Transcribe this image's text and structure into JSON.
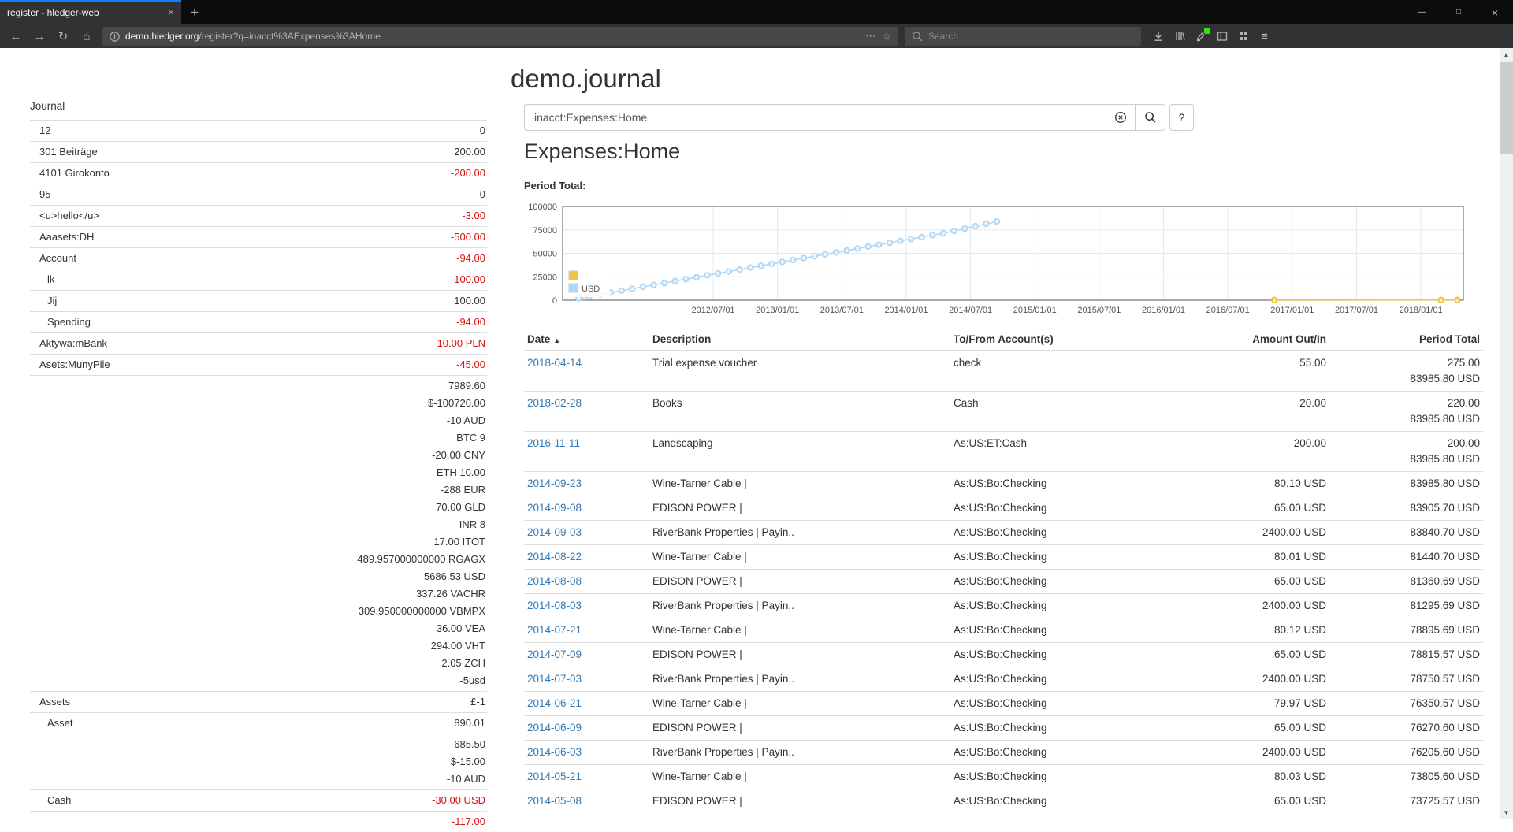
{
  "colors": {
    "negative": "#dd1111",
    "link": "#337ab7",
    "accent": "#0a84ff"
  },
  "icons": {
    "back": "←",
    "forward": "→",
    "reload": "↻",
    "home": "⌂",
    "close_tab": "×",
    "new_tab": "+",
    "minimize": "—",
    "maximize": "□",
    "close_window": "×",
    "page_actions": "⋯",
    "bookmark_star": "☆",
    "menu": "≡",
    "scroll_up": "▲",
    "scroll_down": "▼"
  },
  "browser": {
    "tab_title": "register - hledger-web",
    "url_host": "demo.hledger.org",
    "url_path": "/register?q=inacct%3AExpenses%3AHome",
    "search_placeholder": "Search"
  },
  "page": {
    "title": "demo.journal",
    "query": "inacct:Expenses:Home",
    "heading": "Expenses:Home",
    "chart_label": "Period Total:",
    "help_label": "?"
  },
  "sidebar": {
    "title": "Journal",
    "items": [
      {
        "indent": 1,
        "name": "12",
        "amounts": [
          {
            "text": "0",
            "neg": false
          }
        ]
      },
      {
        "indent": 1,
        "name": "301 Beiträge",
        "amounts": [
          {
            "text": "200.00",
            "neg": false
          }
        ]
      },
      {
        "indent": 1,
        "name": "4101 Girokonto",
        "amounts": [
          {
            "text": "-200.00",
            "neg": true
          }
        ]
      },
      {
        "indent": 1,
        "name": "95",
        "amounts": [
          {
            "text": "0",
            "neg": false
          }
        ]
      },
      {
        "indent": 1,
        "name": "<u>hello</u>",
        "amounts": [
          {
            "text": "-3.00",
            "neg": true
          }
        ]
      },
      {
        "indent": 1,
        "name": "Aaasets:DH",
        "amounts": [
          {
            "text": "-500.00",
            "neg": true
          }
        ]
      },
      {
        "indent": 1,
        "name": "Account",
        "amounts": [
          {
            "text": "-94.00",
            "neg": true
          }
        ]
      },
      {
        "indent": 2,
        "name": "lk",
        "amounts": [
          {
            "text": "-100.00",
            "neg": true
          }
        ]
      },
      {
        "indent": 2,
        "name": "Jij",
        "amounts": [
          {
            "text": "100.00",
            "neg": false
          }
        ]
      },
      {
        "indent": 2,
        "name": "Spending",
        "amounts": [
          {
            "text": "-94.00",
            "neg": true
          }
        ]
      },
      {
        "indent": 1,
        "name": "Aktywa:mBank",
        "amounts": [
          {
            "text": "-10.00 PLN",
            "neg": true
          }
        ]
      },
      {
        "indent": 1,
        "name": "Asets:MunyPile",
        "amounts": [
          {
            "text": "-45.00",
            "neg": true
          }
        ]
      },
      {
        "indent": 1,
        "name": "",
        "amounts": [
          {
            "text": "7989.60",
            "neg": false
          },
          {
            "text": "$-100720.00",
            "neg": false
          },
          {
            "text": "-10 AUD",
            "neg": false
          },
          {
            "text": "BTC 9",
            "neg": false
          },
          {
            "text": "-20.00 CNY",
            "neg": false
          },
          {
            "text": "ETH 10.00",
            "neg": false
          },
          {
            "text": "-288 EUR",
            "neg": false
          },
          {
            "text": "70.00 GLD",
            "neg": false
          },
          {
            "text": "INR 8",
            "neg": false
          },
          {
            "text": "17.00 ITOT",
            "neg": false
          },
          {
            "text": "489.957000000000 RGAGX",
            "neg": false
          },
          {
            "text": "5686.53 USD",
            "neg": false
          },
          {
            "text": "337.26 VACHR",
            "neg": false
          },
          {
            "text": "309.950000000000 VBMPX",
            "neg": false
          },
          {
            "text": "36.00 VEA",
            "neg": false
          },
          {
            "text": "294.00 VHT",
            "neg": false
          },
          {
            "text": "2.05 ZCH",
            "neg": false
          },
          {
            "text": "-5usd",
            "neg": false
          }
        ]
      },
      {
        "indent": 1,
        "name": "Assets",
        "amounts": [
          {
            "text": "£-1",
            "neg": false
          }
        ]
      },
      {
        "indent": 2,
        "name": "Asset",
        "amounts": [
          {
            "text": "890.01",
            "neg": false
          }
        ]
      },
      {
        "indent": 2,
        "name": "",
        "amounts": [
          {
            "text": "685.50",
            "neg": false
          },
          {
            "text": "$-15.00",
            "neg": false
          },
          {
            "text": "-10 AUD",
            "neg": false
          }
        ]
      },
      {
        "indent": 2,
        "name": "Cash",
        "amounts": [
          {
            "text": "-30.00 USD",
            "neg": true
          }
        ]
      },
      {
        "indent": 2,
        "name": "",
        "amounts": [
          {
            "text": "-117.00",
            "neg": true
          }
        ]
      }
    ]
  },
  "register": {
    "columns": [
      "Date",
      "Description",
      "To/From Account(s)",
      "Amount Out/In",
      "Period Total"
    ],
    "sort_caret": "▲",
    "rows": [
      {
        "date": "2018-04-14",
        "description": "Trial expense voucher",
        "account": "check",
        "amount": "55.00",
        "totals": [
          "275.00",
          "83985.80 USD"
        ]
      },
      {
        "date": "2018-02-28",
        "description": "Books",
        "account": "Cash",
        "amount": "20.00",
        "totals": [
          "220.00",
          "83985.80 USD"
        ]
      },
      {
        "date": "2016-11-11",
        "description": "Landscaping",
        "account": "As:US:ET:Cash",
        "amount": "200.00",
        "totals": [
          "200.00",
          "83985.80 USD"
        ]
      },
      {
        "date": "2014-09-23",
        "description": "Wine-Tarner Cable |",
        "account": "As:US:Bo:Checking",
        "amount": "80.10 USD",
        "totals": [
          "83985.80 USD"
        ]
      },
      {
        "date": "2014-09-08",
        "description": "EDISON POWER |",
        "account": "As:US:Bo:Checking",
        "amount": "65.00 USD",
        "totals": [
          "83905.70 USD"
        ]
      },
      {
        "date": "2014-09-03",
        "description": "RiverBank Properties | Payin..",
        "account": "As:US:Bo:Checking",
        "amount": "2400.00 USD",
        "totals": [
          "83840.70 USD"
        ]
      },
      {
        "date": "2014-08-22",
        "description": "Wine-Tarner Cable |",
        "account": "As:US:Bo:Checking",
        "amount": "80.01 USD",
        "totals": [
          "81440.70 USD"
        ]
      },
      {
        "date": "2014-08-08",
        "description": "EDISON POWER |",
        "account": "As:US:Bo:Checking",
        "amount": "65.00 USD",
        "totals": [
          "81360.69 USD"
        ]
      },
      {
        "date": "2014-08-03",
        "description": "RiverBank Properties | Payin..",
        "account": "As:US:Bo:Checking",
        "amount": "2400.00 USD",
        "totals": [
          "81295.69 USD"
        ]
      },
      {
        "date": "2014-07-21",
        "description": "Wine-Tarner Cable |",
        "account": "As:US:Bo:Checking",
        "amount": "80.12 USD",
        "totals": [
          "78895.69 USD"
        ]
      },
      {
        "date": "2014-07-09",
        "description": "EDISON POWER |",
        "account": "As:US:Bo:Checking",
        "amount": "65.00 USD",
        "totals": [
          "78815.57 USD"
        ]
      },
      {
        "date": "2014-07-03",
        "description": "RiverBank Properties | Payin..",
        "account": "As:US:Bo:Checking",
        "amount": "2400.00 USD",
        "totals": [
          "78750.57 USD"
        ]
      },
      {
        "date": "2014-06-21",
        "description": "Wine-Tarner Cable |",
        "account": "As:US:Bo:Checking",
        "amount": "79.97 USD",
        "totals": [
          "76350.57 USD"
        ]
      },
      {
        "date": "2014-06-09",
        "description": "EDISON POWER |",
        "account": "As:US:Bo:Checking",
        "amount": "65.00 USD",
        "totals": [
          "76270.60 USD"
        ]
      },
      {
        "date": "2014-06-03",
        "description": "RiverBank Properties | Payin..",
        "account": "As:US:Bo:Checking",
        "amount": "2400.00 USD",
        "totals": [
          "76205.60 USD"
        ]
      },
      {
        "date": "2014-05-21",
        "description": "Wine-Tarner Cable |",
        "account": "As:US:Bo:Checking",
        "amount": "80.03 USD",
        "totals": [
          "73805.60 USD"
        ]
      },
      {
        "date": "2014-05-08",
        "description": "EDISON POWER |",
        "account": "As:US:Bo:Checking",
        "amount": "65.00 USD",
        "totals": [
          "73725.57 USD"
        ]
      }
    ]
  },
  "chart_data": {
    "type": "line",
    "title": "Period Total:",
    "x_ticks": [
      "2012/07/01",
      "2013/01/01",
      "2013/07/01",
      "2014/01/01",
      "2014/07/01",
      "2015/01/01",
      "2015/07/01",
      "2016/01/01",
      "2016/07/01",
      "2017/01/01",
      "2017/07/01",
      "2018/01/01"
    ],
    "y_ticks": [
      0,
      25000,
      50000,
      75000,
      100000
    ],
    "ylim": [
      0,
      100000
    ],
    "x_domain": [
      2011.33,
      2018.33
    ],
    "grid": true,
    "legend_position": "inside-left",
    "series": [
      {
        "name": "",
        "color": "#edc240",
        "points": [
          [
            "2016-11-11",
            200
          ],
          [
            "2018-02-28",
            220
          ],
          [
            "2018-04-14",
            275
          ]
        ]
      },
      {
        "name": "USD",
        "color": "#afd8f8",
        "points": [
          [
            "2011-06",
            2040
          ],
          [
            "2011-07",
            4080
          ],
          [
            "2011-08",
            6120
          ],
          [
            "2011-09",
            8160
          ],
          [
            "2011-10",
            10200
          ],
          [
            "2011-11",
            12240
          ],
          [
            "2011-12",
            14280
          ],
          [
            "2012-01",
            16320
          ],
          [
            "2012-02",
            18360
          ],
          [
            "2012-03",
            20400
          ],
          [
            "2012-04",
            22440
          ],
          [
            "2012-05",
            24480
          ],
          [
            "2012-06",
            26520
          ],
          [
            "2012-07",
            28560
          ],
          [
            "2012-08",
            30600
          ],
          [
            "2012-09",
            32640
          ],
          [
            "2012-10",
            34680
          ],
          [
            "2012-11",
            36720
          ],
          [
            "2012-12",
            38760
          ],
          [
            "2013-01",
            40800
          ],
          [
            "2013-02",
            42840
          ],
          [
            "2013-03",
            44880
          ],
          [
            "2013-04",
            46920
          ],
          [
            "2013-05",
            48960
          ],
          [
            "2013-06",
            51000
          ],
          [
            "2013-07",
            53040
          ],
          [
            "2013-08",
            55080
          ],
          [
            "2013-09",
            57120
          ],
          [
            "2013-10",
            59160
          ],
          [
            "2013-11",
            61200
          ],
          [
            "2013-12",
            63240
          ],
          [
            "2014-01",
            65280
          ],
          [
            "2014-02",
            67320
          ],
          [
            "2014-03",
            69360
          ],
          [
            "2014-04",
            71400
          ],
          [
            "2014-05",
            73805.6
          ],
          [
            "2014-06",
            76350.57
          ],
          [
            "2014-07",
            78895.69
          ],
          [
            "2014-08",
            81440.7
          ],
          [
            "2014-09",
            83985.8
          ]
        ]
      }
    ]
  }
}
